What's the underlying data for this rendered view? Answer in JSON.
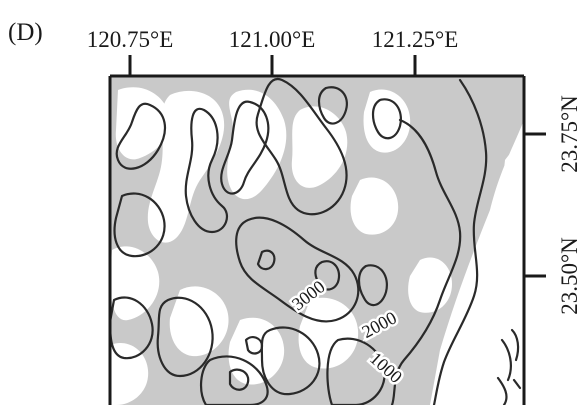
{
  "panel_label": "(D)",
  "longitude_ticks": [
    "120.75°E",
    "121.00°E",
    "121.25°E"
  ],
  "latitude_ticks": [
    "23.75°N",
    "23.50°N"
  ],
  "contour_labels": [
    "3000",
    "2000",
    "1000"
  ],
  "colors": {
    "background": "#ffffff",
    "highland_fill": "#c9c9c9",
    "contour_line": "#2a2a2a",
    "frame": "#1a1a1a"
  }
}
